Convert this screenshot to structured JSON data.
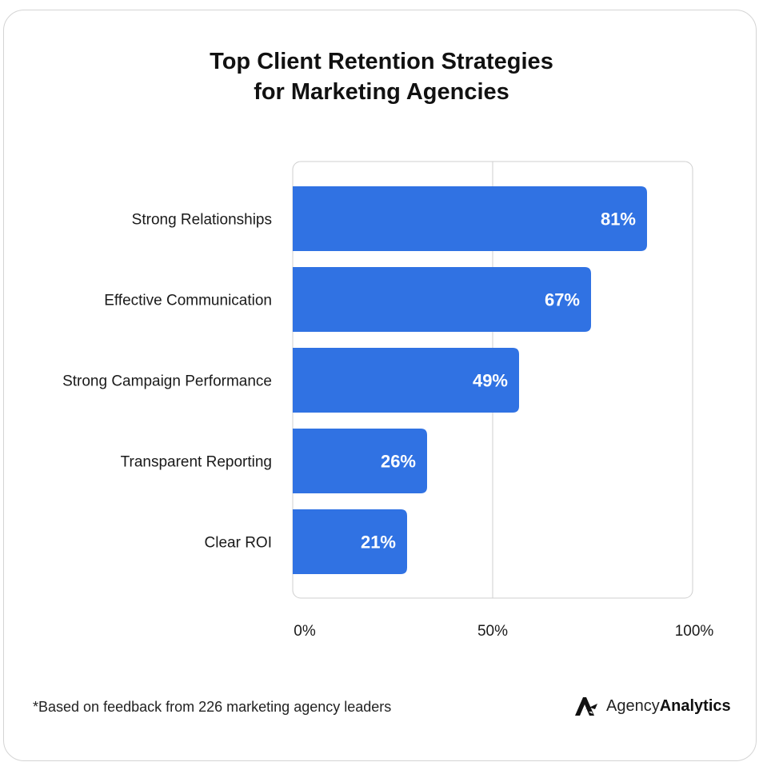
{
  "title_line1": "Top Client Retention Strategies",
  "title_line2": "for Marketing Agencies",
  "footnote": "*Based on feedback from 226 marketing agency leaders",
  "brand": {
    "name_light": "Agency",
    "name_bold": "Analytics",
    "icon": "agencyanalytics-logo-icon"
  },
  "colors": {
    "bar": "#3072E3",
    "grid": "#cfcfcf",
    "label": "#1a1a1a",
    "value_label": "#ffffff"
  },
  "chart_data": {
    "type": "bar",
    "orientation": "horizontal",
    "categories": [
      "Strong Relationships",
      "Effective Communication",
      "Strong Campaign Performance",
      "Transparent Reporting",
      "Clear ROI"
    ],
    "values": [
      81,
      67,
      49,
      26,
      21
    ],
    "value_labels": [
      "81%",
      "67%",
      "49%",
      "26%",
      "21%"
    ],
    "xlim": [
      0,
      100
    ],
    "x_ticks": [
      0,
      50,
      100
    ],
    "x_tick_labels": [
      "0%",
      "50%",
      "100%"
    ],
    "grid": true,
    "legend": "none"
  }
}
